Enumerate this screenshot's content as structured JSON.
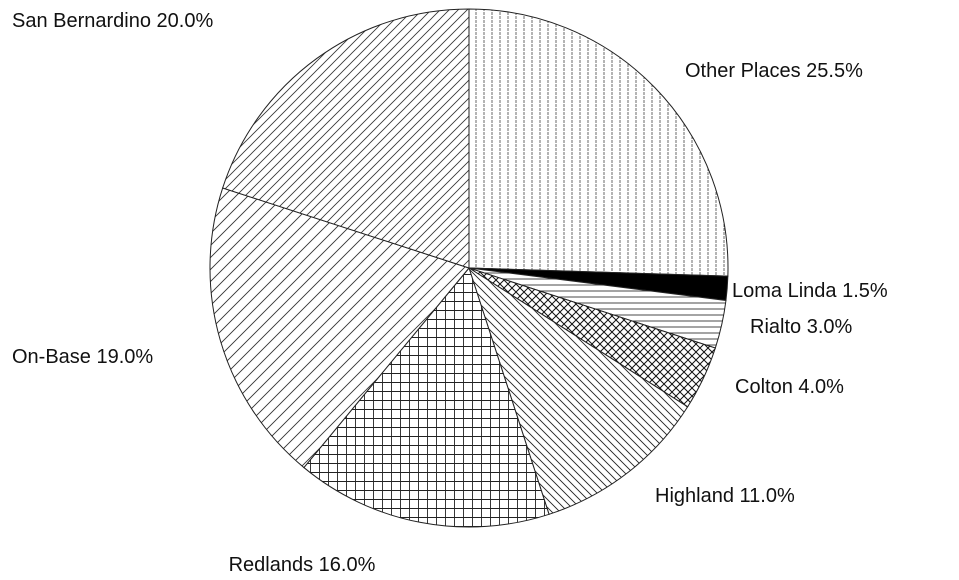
{
  "chart_data": {
    "type": "pie",
    "categories": [
      "Other Places",
      "Loma Linda",
      "Rialto",
      "Colton",
      "Highland",
      "Redlands",
      "On-Base",
      "San Bernardino"
    ],
    "values": [
      25.5,
      1.5,
      3.0,
      4.0,
      11.0,
      16.0,
      19.0,
      20.0
    ],
    "value_labels": [
      "25.5%",
      "1.5%",
      "3.0%",
      "4.0%",
      "11.0%",
      "16.0%",
      "19.0%",
      "20.0%"
    ]
  }
}
